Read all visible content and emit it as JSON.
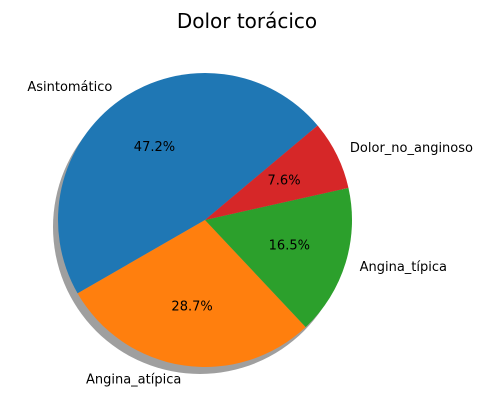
{
  "chart_data": {
    "type": "pie",
    "title": "Dolor torácico",
    "shadow": true,
    "start_angle_deg": 40,
    "direction": "counterclockwise",
    "slices": [
      {
        "label": "Asintomático",
        "value": 47.2,
        "pct_label": "47.2%",
        "color": "#1f77b4"
      },
      {
        "label": "Angina_atípica",
        "value": 28.7,
        "pct_label": "28.7%",
        "color": "#ff7f0e"
      },
      {
        "label": "Angina_típica",
        "value": 16.5,
        "pct_label": "16.5%",
        "color": "#2ca02c"
      },
      {
        "label": "Dolor_no_anginoso",
        "value": 7.6,
        "pct_label": "7.6%",
        "color": "#d62728"
      }
    ]
  }
}
